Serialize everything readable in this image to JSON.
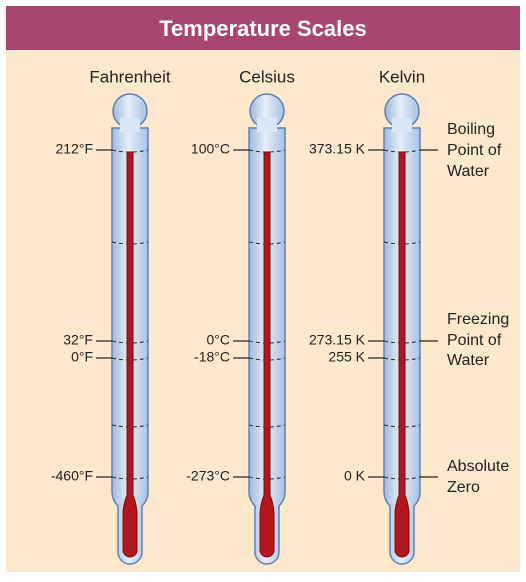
{
  "header": {
    "title": "Temperature Scales"
  },
  "scales": [
    {
      "name": "Fahrenheit",
      "labels": [
        "212°F",
        "32°F",
        "0°F",
        "-460°F"
      ]
    },
    {
      "name": "Celsius",
      "labels": [
        "100°C",
        "0°C",
        "-18°C",
        "-273°C"
      ]
    },
    {
      "name": "Kelvin",
      "labels": [
        "373.15 K",
        "273.15 K",
        "255 K",
        "0 K"
      ]
    }
  ],
  "references": [
    {
      "lines": [
        "Boiling",
        "Point of",
        "Water"
      ]
    },
    {
      "lines": [
        "Freezing",
        "Point of",
        "Water"
      ]
    },
    {
      "lines": [
        "Absolute",
        "Zero"
      ]
    }
  ]
}
